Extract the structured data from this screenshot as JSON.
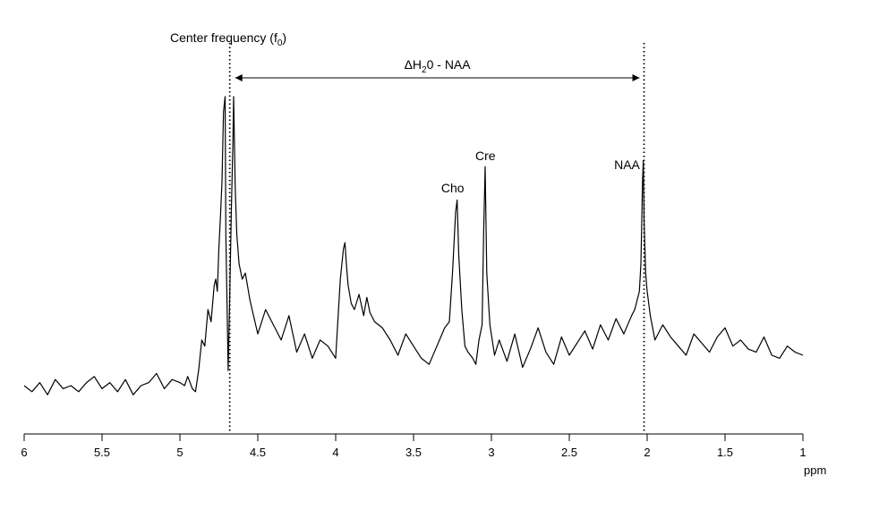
{
  "chart_data": {
    "type": "line",
    "title": "",
    "xlabel": "ppm",
    "ylabel": "",
    "x_reversed": true,
    "xlim": [
      6,
      1
    ],
    "ylim": [
      0,
      1
    ],
    "grid": false,
    "y_axis_visible": false,
    "x_ticks": [
      6,
      5.5,
      5,
      4.5,
      4,
      3.5,
      3,
      2.5,
      2,
      1.5,
      1
    ],
    "x_tick_labels": [
      "6",
      "5.5",
      "5",
      "4.5",
      "4",
      "3.5",
      "3",
      "2.5",
      "2",
      "1.5",
      "1"
    ],
    "line_color": "#000000",
    "series": [
      {
        "x": [
          6.0,
          5.95,
          5.9,
          5.85,
          5.8,
          5.75,
          5.7,
          5.65,
          5.6,
          5.55,
          5.5,
          5.45,
          5.4,
          5.35,
          5.3,
          5.25,
          5.2,
          5.15,
          5.1,
          5.05,
          5.0,
          4.97,
          4.95,
          4.92,
          4.9,
          4.88,
          4.86,
          4.84,
          4.82,
          4.8,
          4.78,
          4.77,
          4.76,
          4.75,
          4.74,
          4.73,
          4.72,
          4.71,
          4.705,
          4.69,
          4.68,
          4.67,
          4.66,
          4.655,
          4.645,
          4.635,
          4.62,
          4.6,
          4.58,
          4.55,
          4.5,
          4.45,
          4.4,
          4.35,
          4.3,
          4.25,
          4.2,
          4.15,
          4.1,
          4.05,
          4.0,
          3.97,
          3.95,
          3.94,
          3.93,
          3.92,
          3.9,
          3.88,
          3.85,
          3.82,
          3.8,
          3.78,
          3.75,
          3.7,
          3.65,
          3.6,
          3.55,
          3.5,
          3.45,
          3.4,
          3.35,
          3.3,
          3.27,
          3.25,
          3.23,
          3.22,
          3.21,
          3.19,
          3.17,
          3.15,
          3.12,
          3.1,
          3.08,
          3.06,
          3.05,
          3.04,
          3.03,
          3.01,
          2.98,
          2.95,
          2.9,
          2.85,
          2.8,
          2.75,
          2.7,
          2.65,
          2.6,
          2.55,
          2.5,
          2.45,
          2.4,
          2.35,
          2.3,
          2.25,
          2.2,
          2.15,
          2.1,
          2.08,
          2.06,
          2.05,
          2.04,
          2.035,
          2.03,
          2.025,
          2.02,
          2.01,
          2.0,
          1.98,
          1.95,
          1.9,
          1.85,
          1.8,
          1.75,
          1.7,
          1.65,
          1.6,
          1.55,
          1.5,
          1.45,
          1.4,
          1.35,
          1.3,
          1.25,
          1.2,
          1.15,
          1.1,
          1.05,
          1.0
        ],
        "y": [
          0.05,
          0.03,
          0.06,
          0.02,
          0.07,
          0.04,
          0.05,
          0.03,
          0.06,
          0.08,
          0.04,
          0.06,
          0.03,
          0.07,
          0.02,
          0.05,
          0.06,
          0.09,
          0.04,
          0.07,
          0.06,
          0.05,
          0.08,
          0.04,
          0.03,
          0.1,
          0.2,
          0.18,
          0.3,
          0.26,
          0.38,
          0.4,
          0.36,
          0.5,
          0.6,
          0.72,
          0.95,
          1.0,
          0.55,
          0.1,
          0.35,
          0.62,
          0.85,
          1.0,
          0.7,
          0.55,
          0.45,
          0.4,
          0.42,
          0.33,
          0.22,
          0.3,
          0.25,
          0.2,
          0.28,
          0.16,
          0.22,
          0.14,
          0.2,
          0.18,
          0.14,
          0.4,
          0.5,
          0.52,
          0.44,
          0.38,
          0.32,
          0.3,
          0.35,
          0.28,
          0.34,
          0.29,
          0.26,
          0.24,
          0.2,
          0.15,
          0.22,
          0.18,
          0.14,
          0.12,
          0.18,
          0.24,
          0.26,
          0.42,
          0.62,
          0.66,
          0.48,
          0.3,
          0.18,
          0.16,
          0.14,
          0.12,
          0.2,
          0.25,
          0.55,
          0.77,
          0.42,
          0.25,
          0.15,
          0.2,
          0.13,
          0.22,
          0.11,
          0.17,
          0.24,
          0.16,
          0.12,
          0.21,
          0.15,
          0.19,
          0.23,
          0.17,
          0.25,
          0.2,
          0.27,
          0.22,
          0.28,
          0.3,
          0.34,
          0.36,
          0.45,
          0.58,
          0.72,
          0.79,
          0.6,
          0.42,
          0.36,
          0.28,
          0.2,
          0.25,
          0.21,
          0.18,
          0.15,
          0.22,
          0.19,
          0.16,
          0.21,
          0.24,
          0.18,
          0.2,
          0.17,
          0.16,
          0.21,
          0.15,
          0.14,
          0.18,
          0.16,
          0.15
        ]
      }
    ],
    "annotations": [
      {
        "id": "center",
        "text": "Center frequency (f",
        "subscript": "0",
        "suffix": ")",
        "x": 4.68
      },
      {
        "id": "delta",
        "text_prefix": "ΔH",
        "subscript": "2",
        "text_suffix": "0 - NAA",
        "x_from": 4.68,
        "x_to": 2.02
      },
      {
        "id": "cho",
        "text": "Cho",
        "x": 3.22
      },
      {
        "id": "cre",
        "text": "Cre",
        "x": 3.05
      },
      {
        "id": "naa",
        "text": "NAA",
        "x": 2.02
      }
    ],
    "vertical_markers": [
      4.68,
      2.02
    ]
  }
}
